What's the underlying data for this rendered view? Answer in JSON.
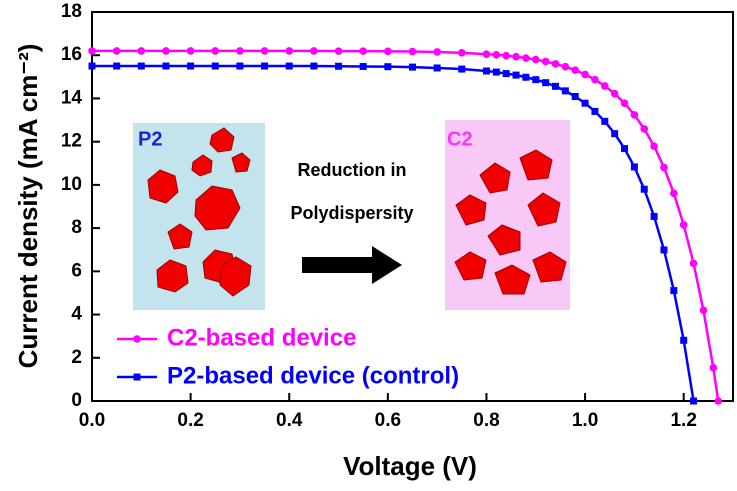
{
  "chart_data": {
    "type": "line",
    "xlabel": "Voltage (V)",
    "ylabel": "Current density (mA cm⁻²)",
    "annotations": [
      "P2",
      "Reduction in",
      "Polydispersity",
      "C2"
    ],
    "xlim": [
      0,
      1.3
    ],
    "ylim": [
      0,
      18
    ],
    "xticks": [
      {
        "value": 0,
        "label": "0.0"
      },
      {
        "value": 0.2,
        "label": "0.2"
      },
      {
        "value": 0.4,
        "label": "0.4"
      },
      {
        "value": 0.6,
        "label": "0.6"
      },
      {
        "value": 0.8,
        "label": "0.8"
      },
      {
        "value": 1,
        "label": "1.0"
      },
      {
        "value": 1.2,
        "label": "1.2"
      }
    ],
    "yticks": [
      0,
      2,
      4,
      6,
      8,
      10,
      12,
      14,
      16,
      18
    ],
    "legend": "lower left",
    "series": [
      {
        "name": "C2-based device",
        "color": "#ff00ff",
        "marker": "circle",
        "x": [
          0,
          0.05,
          0.1,
          0.15,
          0.2,
          0.25,
          0.3,
          0.35,
          0.4,
          0.45,
          0.5,
          0.55,
          0.6,
          0.65,
          0.7,
          0.75,
          0.8,
          0.82,
          0.84,
          0.86,
          0.88,
          0.9,
          0.92,
          0.94,
          0.96,
          0.98,
          1,
          1.02,
          1.04,
          1.06,
          1.08,
          1.1,
          1.12,
          1.14,
          1.16,
          1.18,
          1.2,
          1.22,
          1.24,
          1.26,
          1.27
        ],
        "values": [
          16.2,
          16.2,
          16.2,
          16.2,
          16.2,
          16.2,
          16.2,
          16.2,
          16.2,
          16.2,
          16.19,
          16.19,
          16.18,
          16.17,
          16.15,
          16.11,
          16.05,
          16.02,
          15.98,
          15.93,
          15.87,
          15.8,
          15.71,
          15.6,
          15.47,
          15.31,
          15.11,
          14.87,
          14.58,
          14.22,
          13.78,
          13.24,
          12.59,
          11.79,
          10.81,
          9.61,
          8.15,
          6.37,
          4.2,
          1.54,
          0
        ]
      },
      {
        "name": "P2-based device (control)",
        "color": "#0000ff",
        "marker": "square",
        "x": [
          0,
          0.05,
          0.1,
          0.15,
          0.2,
          0.25,
          0.3,
          0.35,
          0.4,
          0.45,
          0.5,
          0.55,
          0.6,
          0.65,
          0.7,
          0.75,
          0.8,
          0.82,
          0.84,
          0.86,
          0.88,
          0.9,
          0.92,
          0.94,
          0.96,
          0.98,
          1,
          1.02,
          1.04,
          1.06,
          1.08,
          1.1,
          1.12,
          1.14,
          1.16,
          1.18,
          1.2,
          1.22
        ],
        "values": [
          15.5,
          15.5,
          15.5,
          15.5,
          15.5,
          15.5,
          15.5,
          15.5,
          15.5,
          15.5,
          15.49,
          15.48,
          15.47,
          15.45,
          15.41,
          15.36,
          15.27,
          15.22,
          15.15,
          15.08,
          14.98,
          14.87,
          14.73,
          14.56,
          14.35,
          14.09,
          13.78,
          13.4,
          12.94,
          12.37,
          11.68,
          10.83,
          9.8,
          8.54,
          6.99,
          5.11,
          2.81,
          0
        ]
      }
    ]
  }
}
